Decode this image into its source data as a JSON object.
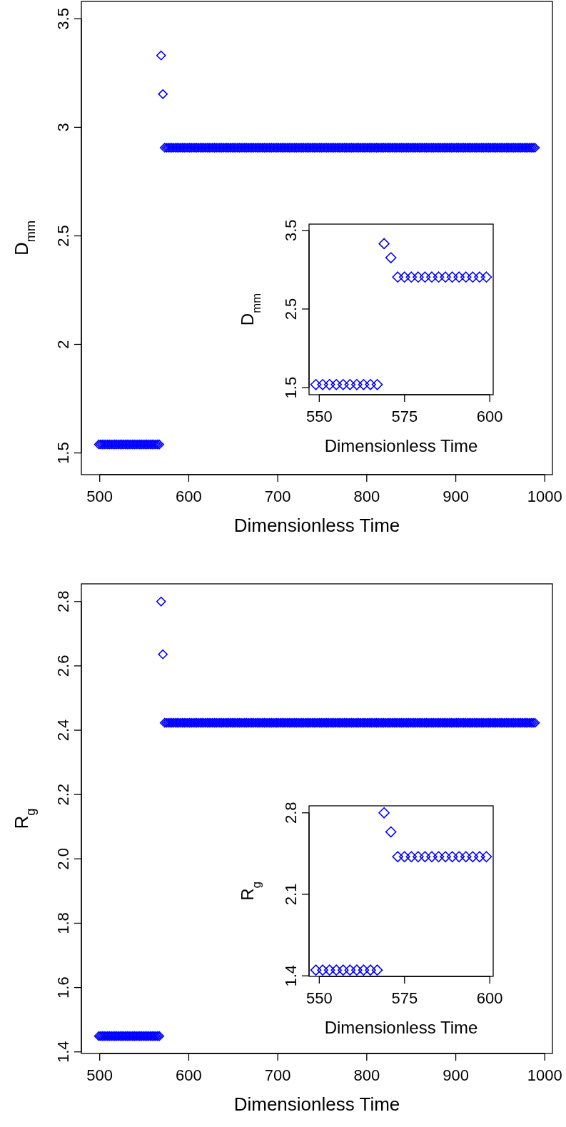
{
  "chart_data": [
    {
      "type": "scatter",
      "xlabel": "Dimensionless Time",
      "ylabel": "D$_{mm}$",
      "color": "#0000ff",
      "marker": "diamond",
      "xlim": [
        479.4,
        1008.6
      ],
      "ylim": [
        1.4,
        3.58
      ],
      "xticks": [
        500,
        600,
        700,
        800,
        900,
        1000
      ],
      "yticks": [
        1.5,
        2,
        2.5,
        3,
        3.5
      ],
      "x": [
        499,
        501,
        503,
        505,
        507,
        509,
        511,
        513,
        515,
        517,
        519,
        521,
        523,
        525,
        527,
        529,
        531,
        533,
        535,
        537,
        539,
        541,
        543,
        545,
        547,
        549,
        551,
        553,
        555,
        557,
        559,
        561,
        563,
        565,
        567,
        569,
        571,
        573,
        575,
        577,
        579,
        581,
        583,
        585,
        587,
        589,
        591,
        593,
        595,
        597,
        599,
        601,
        603,
        605,
        607,
        609,
        611,
        613,
        615,
        617,
        619,
        621,
        623,
        625,
        627,
        629,
        631,
        633,
        635,
        637,
        639,
        641,
        643,
        645,
        647,
        649,
        651,
        653,
        655,
        657,
        659,
        661,
        663,
        665,
        667,
        669,
        671,
        673,
        675,
        677,
        679,
        681,
        683,
        685,
        687,
        689,
        691,
        693,
        695,
        697,
        699,
        701,
        703,
        705,
        707,
        709,
        711,
        713,
        715,
        717,
        719,
        721,
        723,
        725,
        727,
        729,
        731,
        733,
        735,
        737,
        739,
        741,
        743,
        745,
        747,
        749,
        751,
        753,
        755,
        757,
        759,
        761,
        763,
        765,
        767,
        769,
        771,
        773,
        775,
        777,
        779,
        781,
        783,
        785,
        787,
        789,
        791,
        793,
        795,
        797,
        799,
        801,
        803,
        805,
        807,
        809,
        811,
        813,
        815,
        817,
        819,
        821,
        823,
        825,
        827,
        829,
        831,
        833,
        835,
        837,
        839,
        841,
        843,
        845,
        847,
        849,
        851,
        853,
        855,
        857,
        859,
        861,
        863,
        865,
        867,
        869,
        871,
        873,
        875,
        877,
        879,
        881,
        883,
        885,
        887,
        889,
        891,
        893,
        895,
        897,
        899,
        901,
        903,
        905,
        907,
        909,
        911,
        913,
        915,
        917,
        919,
        921,
        923,
        925,
        927,
        929,
        931,
        933,
        935,
        937,
        939,
        941,
        943,
        945,
        947,
        949,
        951,
        953,
        955,
        957,
        959,
        961,
        963,
        965,
        967,
        969,
        971,
        973,
        975,
        977,
        979,
        981,
        983,
        985,
        987,
        989
      ],
      "values": [
        1.539,
        1.539,
        1.539,
        1.539,
        1.539,
        1.539,
        1.539,
        1.539,
        1.539,
        1.539,
        1.539,
        1.539,
        1.539,
        1.539,
        1.539,
        1.539,
        1.539,
        1.539,
        1.539,
        1.539,
        1.539,
        1.539,
        1.539,
        1.539,
        1.539,
        1.539,
        1.539,
        1.539,
        1.539,
        1.539,
        1.539,
        1.539,
        1.539,
        1.539,
        1.539,
        3.331,
        3.153,
        2.906,
        2.906,
        2.906,
        2.906,
        2.906,
        2.906,
        2.906,
        2.906,
        2.906,
        2.906,
        2.906,
        2.906,
        2.906,
        2.906,
        2.906,
        2.906,
        2.906,
        2.906,
        2.906,
        2.906,
        2.906,
        2.906,
        2.906,
        2.906,
        2.906,
        2.906,
        2.906,
        2.906,
        2.906,
        2.906,
        2.906,
        2.906,
        2.906,
        2.906,
        2.906,
        2.906,
        2.906,
        2.906,
        2.906,
        2.906,
        2.906,
        2.906,
        2.906,
        2.906,
        2.906,
        2.906,
        2.906,
        2.906,
        2.906,
        2.906,
        2.906,
        2.906,
        2.906,
        2.906,
        2.906,
        2.906,
        2.906,
        2.906,
        2.906,
        2.906,
        2.906,
        2.906,
        2.906,
        2.906,
        2.906,
        2.906,
        2.906,
        2.906,
        2.906,
        2.906,
        2.906,
        2.906,
        2.906,
        2.906,
        2.906,
        2.906,
        2.906,
        2.906,
        2.906,
        2.906,
        2.906,
        2.906,
        2.906,
        2.906,
        2.906,
        2.906,
        2.906,
        2.906,
        2.906,
        2.906,
        2.906,
        2.906,
        2.906,
        2.906,
        2.906,
        2.906,
        2.906,
        2.906,
        2.906,
        2.906,
        2.906,
        2.906,
        2.906,
        2.906,
        2.906,
        2.906,
        2.906,
        2.906,
        2.906,
        2.906,
        2.906,
        2.906,
        2.906,
        2.906,
        2.906,
        2.906,
        2.906,
        2.906,
        2.906,
        2.906,
        2.906,
        2.906,
        2.906,
        2.906,
        2.906,
        2.906,
        2.906,
        2.906,
        2.906,
        2.906,
        2.906,
        2.906,
        2.906,
        2.906,
        2.906,
        2.906,
        2.906,
        2.906,
        2.906,
        2.906,
        2.906,
        2.906,
        2.906,
        2.906,
        2.906,
        2.906,
        2.906,
        2.906,
        2.906,
        2.906,
        2.906,
        2.906,
        2.906,
        2.906,
        2.906,
        2.906,
        2.906,
        2.906,
        2.906,
        2.906,
        2.906,
        2.906,
        2.906,
        2.906,
        2.906,
        2.906,
        2.906,
        2.906,
        2.906,
        2.906,
        2.906,
        2.906,
        2.906,
        2.906,
        2.906,
        2.906,
        2.906,
        2.906,
        2.906,
        2.906,
        2.906,
        2.906,
        2.906,
        2.906,
        2.906,
        2.906,
        2.906,
        2.906,
        2.906,
        2.906,
        2.906,
        2.906,
        2.906,
        2.906,
        2.906,
        2.906,
        2.906,
        2.906,
        2.906,
        2.906,
        2.906,
        2.906,
        2.906,
        2.906,
        2.906,
        2.906,
        2.906,
        2.906,
        2.906
      ]
    },
    {
      "type": "scatter",
      "xlabel": "Dimensionless Time",
      "ylabel": "D$_{mm}$",
      "color": "#0000ff",
      "marker": "diamond",
      "xlim": [
        547,
        601
      ],
      "ylim": [
        1.41,
        3.58
      ],
      "xticks": [
        550,
        575,
        600
      ],
      "yticks": [
        1.5,
        2.5,
        3.5
      ],
      "x": [
        549,
        551,
        553,
        555,
        557,
        559,
        561,
        563,
        565,
        567,
        569,
        571,
        573,
        575,
        577,
        579,
        581,
        583,
        585,
        587,
        589,
        591,
        593,
        595,
        597,
        599
      ],
      "values": [
        1.539,
        1.539,
        1.539,
        1.539,
        1.539,
        1.539,
        1.539,
        1.539,
        1.539,
        1.539,
        3.331,
        3.153,
        2.906,
        2.906,
        2.906,
        2.906,
        2.906,
        2.906,
        2.906,
        2.906,
        2.906,
        2.906,
        2.906,
        2.906,
        2.906,
        2.906
      ]
    },
    {
      "type": "scatter",
      "xlabel": "Dimensionless Time",
      "ylabel": "R$_{g}$",
      "color": "#0000ff",
      "marker": "diamond",
      "xlim": [
        479.4,
        1008.6
      ],
      "ylim": [
        1.395,
        2.855
      ],
      "xticks": [
        500,
        600,
        700,
        800,
        900,
        1000
      ],
      "yticks": [
        1.4,
        1.6,
        1.8,
        {
          "value": 2,
          "label": "2.0"
        },
        2.2,
        2.4,
        2.6,
        2.8
      ],
      "x": [
        499,
        501,
        503,
        505,
        507,
        509,
        511,
        513,
        515,
        517,
        519,
        521,
        523,
        525,
        527,
        529,
        531,
        533,
        535,
        537,
        539,
        541,
        543,
        545,
        547,
        549,
        551,
        553,
        555,
        557,
        559,
        561,
        563,
        565,
        567,
        569,
        571,
        573,
        575,
        577,
        579,
        581,
        583,
        585,
        587,
        589,
        591,
        593,
        595,
        597,
        599,
        601,
        603,
        605,
        607,
        609,
        611,
        613,
        615,
        617,
        619,
        621,
        623,
        625,
        627,
        629,
        631,
        633,
        635,
        637,
        639,
        641,
        643,
        645,
        647,
        649,
        651,
        653,
        655,
        657,
        659,
        661,
        663,
        665,
        667,
        669,
        671,
        673,
        675,
        677,
        679,
        681,
        683,
        685,
        687,
        689,
        691,
        693,
        695,
        697,
        699,
        701,
        703,
        705,
        707,
        709,
        711,
        713,
        715,
        717,
        719,
        721,
        723,
        725,
        727,
        729,
        731,
        733,
        735,
        737,
        739,
        741,
        743,
        745,
        747,
        749,
        751,
        753,
        755,
        757,
        759,
        761,
        763,
        765,
        767,
        769,
        771,
        773,
        775,
        777,
        779,
        781,
        783,
        785,
        787,
        789,
        791,
        793,
        795,
        797,
        799,
        801,
        803,
        805,
        807,
        809,
        811,
        813,
        815,
        817,
        819,
        821,
        823,
        825,
        827,
        829,
        831,
        833,
        835,
        837,
        839,
        841,
        843,
        845,
        847,
        849,
        851,
        853,
        855,
        857,
        859,
        861,
        863,
        865,
        867,
        869,
        871,
        873,
        875,
        877,
        879,
        881,
        883,
        885,
        887,
        889,
        891,
        893,
        895,
        897,
        899,
        901,
        903,
        905,
        907,
        909,
        911,
        913,
        915,
        917,
        919,
        921,
        923,
        925,
        927,
        929,
        931,
        933,
        935,
        937,
        939,
        941,
        943,
        945,
        947,
        949,
        951,
        953,
        955,
        957,
        959,
        961,
        963,
        965,
        967,
        969,
        971,
        973,
        975,
        977,
        979,
        981,
        983,
        985,
        987,
        989
      ],
      "values": [
        1.449,
        1.449,
        1.449,
        1.449,
        1.449,
        1.449,
        1.449,
        1.449,
        1.449,
        1.449,
        1.449,
        1.449,
        1.449,
        1.449,
        1.449,
        1.449,
        1.449,
        1.449,
        1.449,
        1.449,
        1.449,
        1.449,
        1.449,
        1.449,
        1.449,
        1.449,
        1.449,
        1.449,
        1.449,
        1.449,
        1.449,
        1.449,
        1.449,
        1.449,
        1.449,
        2.8,
        2.636,
        2.423,
        2.423,
        2.423,
        2.423,
        2.423,
        2.423,
        2.423,
        2.423,
        2.423,
        2.423,
        2.423,
        2.423,
        2.423,
        2.423,
        2.423,
        2.423,
        2.423,
        2.423,
        2.423,
        2.423,
        2.423,
        2.423,
        2.423,
        2.423,
        2.423,
        2.423,
        2.423,
        2.423,
        2.423,
        2.423,
        2.423,
        2.423,
        2.423,
        2.423,
        2.423,
        2.423,
        2.423,
        2.423,
        2.423,
        2.423,
        2.423,
        2.423,
        2.423,
        2.423,
        2.423,
        2.423,
        2.423,
        2.423,
        2.423,
        2.423,
        2.423,
        2.423,
        2.423,
        2.423,
        2.423,
        2.423,
        2.423,
        2.423,
        2.423,
        2.423,
        2.423,
        2.423,
        2.423,
        2.423,
        2.423,
        2.423,
        2.423,
        2.423,
        2.423,
        2.423,
        2.423,
        2.423,
        2.423,
        2.423,
        2.423,
        2.423,
        2.423,
        2.423,
        2.423,
        2.423,
        2.423,
        2.423,
        2.423,
        2.423,
        2.423,
        2.423,
        2.423,
        2.423,
        2.423,
        2.423,
        2.423,
        2.423,
        2.423,
        2.423,
        2.423,
        2.423,
        2.423,
        2.423,
        2.423,
        2.423,
        2.423,
        2.423,
        2.423,
        2.423,
        2.423,
        2.423,
        2.423,
        2.423,
        2.423,
        2.423,
        2.423,
        2.423,
        2.423,
        2.423,
        2.423,
        2.423,
        2.423,
        2.423,
        2.423,
        2.423,
        2.423,
        2.423,
        2.423,
        2.423,
        2.423,
        2.423,
        2.423,
        2.423,
        2.423,
        2.423,
        2.423,
        2.423,
        2.423,
        2.423,
        2.423,
        2.423,
        2.423,
        2.423,
        2.423,
        2.423,
        2.423,
        2.423,
        2.423,
        2.423,
        2.423,
        2.423,
        2.423,
        2.423,
        2.423,
        2.423,
        2.423,
        2.423,
        2.423,
        2.423,
        2.423,
        2.423,
        2.423,
        2.423,
        2.423,
        2.423,
        2.423,
        2.423,
        2.423,
        2.423,
        2.423,
        2.423,
        2.423,
        2.423,
        2.423,
        2.423,
        2.423,
        2.423,
        2.423,
        2.423,
        2.423,
        2.423,
        2.423,
        2.423,
        2.423,
        2.423,
        2.423,
        2.423,
        2.423,
        2.423,
        2.423,
        2.423,
        2.423,
        2.423,
        2.423,
        2.423,
        2.423,
        2.423,
        2.423,
        2.423,
        2.423,
        2.423,
        2.423,
        2.423,
        2.423,
        2.423,
        2.423,
        2.423,
        2.423,
        2.423,
        2.423,
        2.423,
        2.423,
        2.423,
        2.423
      ]
    },
    {
      "type": "scatter",
      "xlabel": "Dimensionless Time",
      "ylabel": "R$_{g}$",
      "color": "#0000ff",
      "marker": "diamond",
      "xlim": [
        547,
        601
      ],
      "ylim": [
        1.395,
        2.86
      ],
      "xticks": [
        550,
        575,
        600
      ],
      "yticks": [
        1.4,
        2.1,
        2.8
      ],
      "x": [
        549,
        551,
        553,
        555,
        557,
        559,
        561,
        563,
        565,
        567,
        569,
        571,
        573,
        575,
        577,
        579,
        581,
        583,
        585,
        587,
        589,
        591,
        593,
        595,
        597,
        599
      ],
      "values": [
        1.449,
        1.449,
        1.449,
        1.449,
        1.449,
        1.449,
        1.449,
        1.449,
        1.449,
        1.449,
        2.8,
        2.636,
        2.423,
        2.423,
        2.423,
        2.423,
        2.423,
        2.423,
        2.423,
        2.423,
        2.423,
        2.423,
        2.423,
        2.423,
        2.423,
        2.423
      ]
    }
  ]
}
